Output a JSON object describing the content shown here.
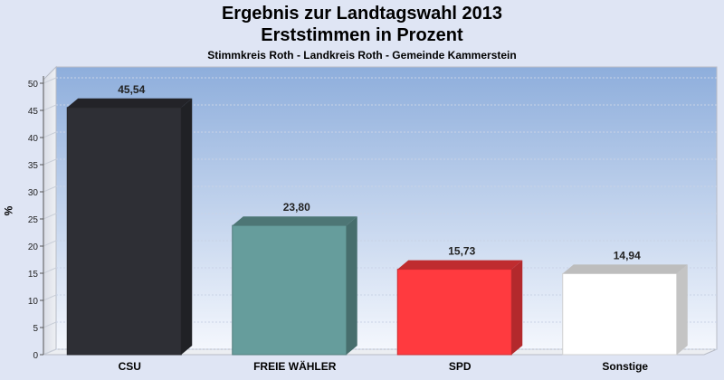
{
  "header": {
    "title_line1": "Ergebnis zur Landtagswahl 2013",
    "title_line2": "Erststimmen in Prozent",
    "subtitle": "Stimmkreis Roth - Landkreis Roth - Gemeinde Kammerstein"
  },
  "chart_data": {
    "type": "bar",
    "title": "Ergebnis zur Landtagswahl 2013 Erststimmen in Prozent",
    "subtitle": "Stimmkreis Roth - Landkreis Roth - Gemeinde Kammerstein",
    "ylabel": "%",
    "xlabel": "",
    "ylim": [
      0,
      50
    ],
    "yticks": [
      0,
      5,
      10,
      15,
      20,
      25,
      30,
      35,
      40,
      45,
      50
    ],
    "grid": true,
    "categories": [
      "CSU",
      "FREIE WÄHLER",
      "SPD",
      "Sonstige"
    ],
    "values": [
      45.54,
      23.8,
      15.73,
      14.94
    ],
    "value_labels": [
      "45,54",
      "23,80",
      "15,73",
      "14,94"
    ],
    "colors": [
      "#2e2f35",
      "#669d9c",
      "#ff3a3f",
      "#ffffff"
    ]
  }
}
